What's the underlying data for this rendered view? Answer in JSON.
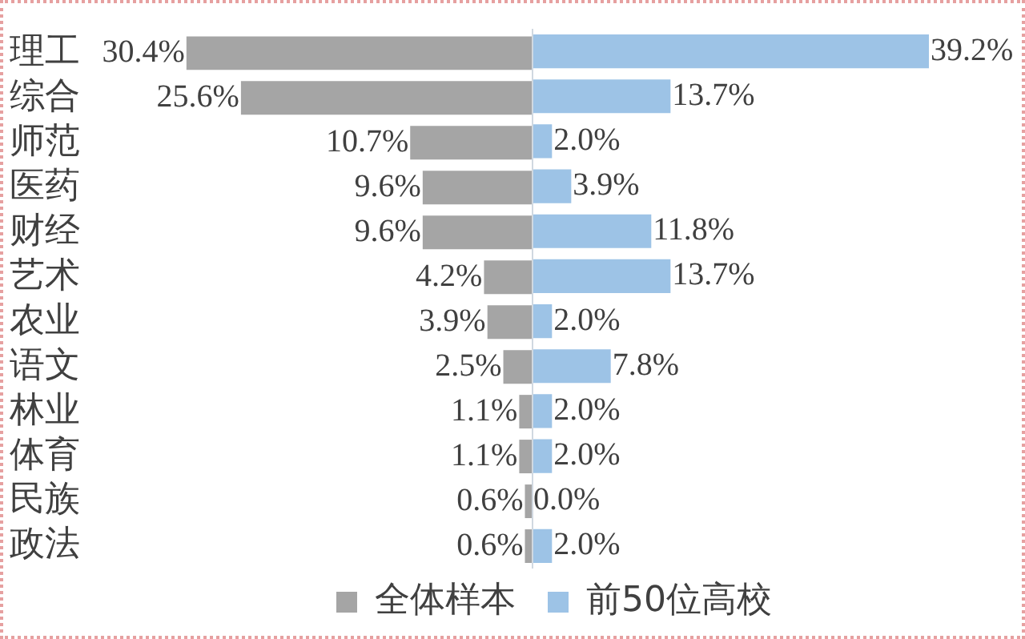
{
  "chart_data": [
    {
      "type": "bar",
      "orientation": "horizontal",
      "legend": "bottom",
      "tick_labels": "y",
      "categories": [
        "理工",
        "综合",
        "师范",
        "医药",
        "财经",
        "艺术",
        "农业",
        "语文",
        "林业",
        "体育",
        "民族",
        "政法"
      ],
      "series": [
        {
          "name": "全体样本",
          "color": "#a5a5a5",
          "values": [
            30.4,
            25.6,
            10.7,
            9.6,
            9.6,
            4.2,
            3.9,
            2.5,
            1.1,
            1.1,
            0.6,
            0.6
          ],
          "value_labels": [
            "30.4%",
            "25.6%",
            "10.7%",
            "9.6%",
            "9.6%",
            "4.2%",
            "3.9%",
            "2.5%",
            "1.1%",
            "1.1%",
            "0.6%",
            "0.6%"
          ]
        }
      ]
    },
    {
      "type": "bar",
      "orientation": "horizontal",
      "legend": "bottom",
      "tick_labels": false,
      "categories": [
        null,
        null,
        null,
        null,
        null,
        null,
        null,
        null,
        null,
        null,
        null,
        null
      ],
      "series": [
        {
          "name": "前50位高校",
          "color": "#9dc3e6",
          "values": [
            39.2,
            13.7,
            2.0,
            3.9,
            11.8,
            13.7,
            2.0,
            7.8,
            2.0,
            2.0,
            0.0,
            2.0
          ],
          "value_labels": [
            "39.2%",
            "13.7%",
            "2.0%",
            "3.9%",
            "11.8%",
            "13.7%",
            "2.0%",
            "7.8%",
            "2.0%",
            "2.0%",
            "0.0%",
            "2.0%"
          ]
        }
      ]
    }
  ]
}
